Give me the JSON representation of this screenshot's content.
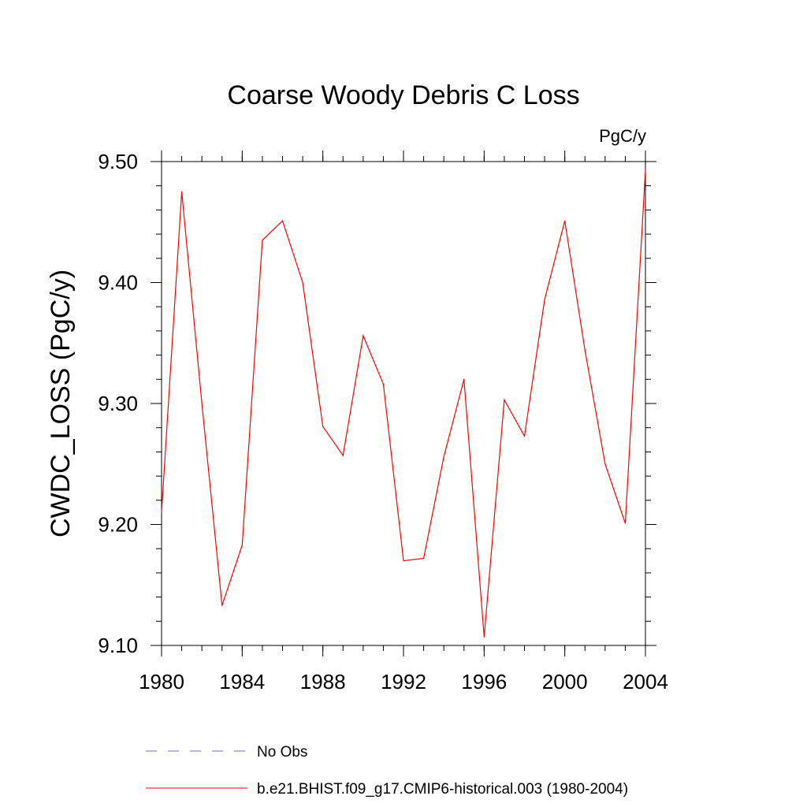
{
  "chart_data": {
    "type": "line",
    "title": "Coarse Woody Debris C Loss",
    "units_label": "PgC/y",
    "ylabel": "CWDC_LOSS  (PgC/y)",
    "xlabel": "",
    "xlim": [
      1980,
      2004
    ],
    "ylim": [
      9.1,
      9.5
    ],
    "x_ticks": [
      "1980",
      "1984",
      "1988",
      "1992",
      "1996",
      "2000",
      "2004"
    ],
    "y_ticks": [
      "9.10",
      "9.20",
      "9.30",
      "9.40",
      "9.50"
    ],
    "grid": false,
    "legend_position": "bottom",
    "series": [
      {
        "name": "No Obs",
        "color": "#6a6ad0",
        "style": "dashed",
        "x": [],
        "values": []
      },
      {
        "name": "b.e21.BHIST.f09_g17.CMIP6-historical.003 (1980-2004)",
        "color": "#ff0000",
        "style": "solid",
        "x": [
          1980,
          1981,
          1982,
          1983,
          1984,
          1985,
          1986,
          1987,
          1988,
          1989,
          1990,
          1991,
          1992,
          1993,
          1994,
          1995,
          1996,
          1997,
          1998,
          1999,
          2000,
          2001,
          2002,
          2003,
          2004
        ],
        "values": [
          9.21,
          9.475,
          9.3,
          9.133,
          9.183,
          9.435,
          9.451,
          9.4,
          9.281,
          9.257,
          9.356,
          9.316,
          9.17,
          9.172,
          9.256,
          9.32,
          9.107,
          9.303,
          9.273,
          9.386,
          9.451,
          9.344,
          9.25,
          9.201,
          9.493
        ]
      }
    ]
  }
}
